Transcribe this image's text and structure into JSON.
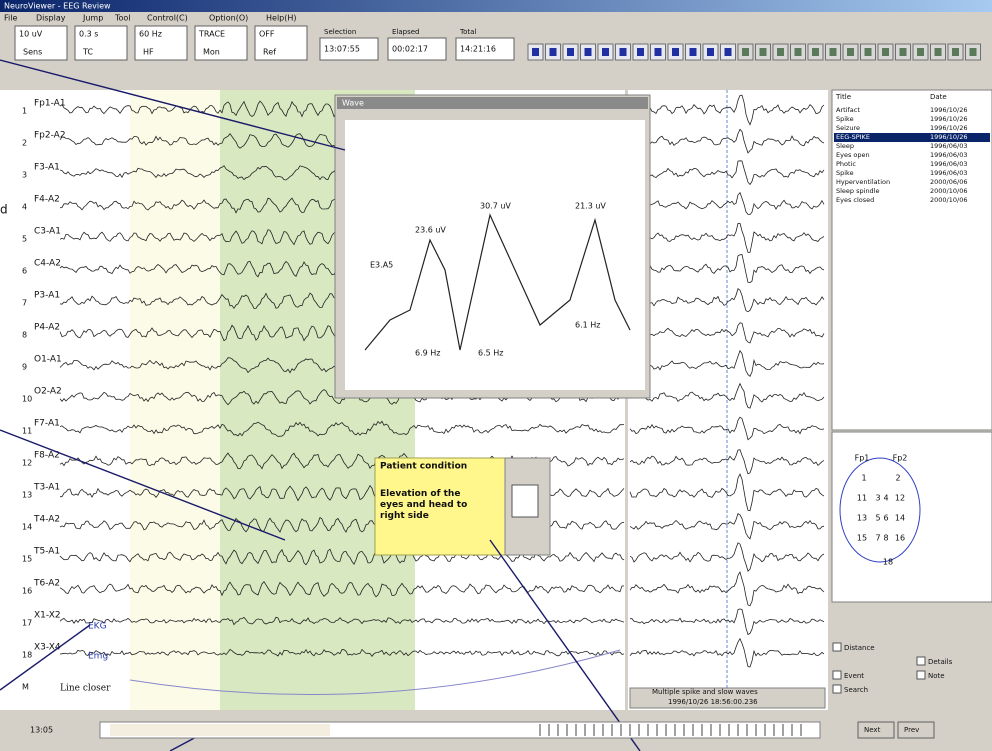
{
  "window": {
    "title": "NeuroViewer - EEG Review",
    "menu": [
      "File",
      "Display",
      "Jump",
      "Tool",
      "Control(C)",
      "Option(O)",
      "Help(H)"
    ]
  },
  "toolbar": {
    "fields": [
      {
        "value": "10 uV",
        "label": "Sens"
      },
      {
        "value": "0.3 s",
        "label": "TC"
      },
      {
        "value": "60 Hz",
        "label": "HF"
      },
      {
        "value": "TRACE",
        "label": "Mon"
      },
      {
        "value": "OFF",
        "label": "Ref"
      }
    ],
    "times": [
      {
        "label": "Selection",
        "value": "13:07:55"
      },
      {
        "label": "Elapsed",
        "value": "00:02:17"
      },
      {
        "label": "Total",
        "value": "14:21:16"
      }
    ]
  },
  "channels": {
    "numbers": [
      "1",
      "2",
      "3",
      "4",
      "5",
      "6",
      "7",
      "8",
      "9",
      "10",
      "11",
      "12",
      "13",
      "14",
      "15",
      "16",
      "17",
      "18",
      "M"
    ],
    "labels": [
      "Fp1-A1",
      "Fp2-A2",
      "F3-A1",
      "F4-A2",
      "C3-A1",
      "C4-A2",
      "P3-A1",
      "P4-A2",
      "O1-A1",
      "O2-A2",
      "F7-A1",
      "F8-A2",
      "T3-A1",
      "T4-A2",
      "T5-A1",
      "T6-A2",
      "X1-X2",
      "X3-X4"
    ],
    "extra": [
      "EKG",
      "Emg",
      "Line closer"
    ]
  },
  "popup": {
    "title": "Wave",
    "axis_label": "E3.A5",
    "peaks": [
      "23.6 uV",
      "30.7 uV",
      "21.3 uV"
    ],
    "freqs": [
      "6.9 Hz",
      "6.5 Hz",
      "6.1 Hz"
    ]
  },
  "note": {
    "heading": "Patient condition",
    "body": "Elevation of the eyes and head to right side"
  },
  "event_list": {
    "headers": [
      "Title",
      "Date"
    ],
    "items": [
      {
        "name": "Artifact",
        "date": "1996/10/26"
      },
      {
        "name": "Spike",
        "date": "1996/10/26"
      },
      {
        "name": "Seizure",
        "date": "1996/10/26"
      },
      {
        "name": "EEG-SPIKE",
        "date": "1996/10/26"
      },
      {
        "name": "Sleep",
        "date": "1996/06/03"
      },
      {
        "name": "Eyes open",
        "date": "1996/06/03"
      },
      {
        "name": "Photic",
        "date": "1996/06/03"
      },
      {
        "name": "Spike",
        "date": "1996/06/03"
      },
      {
        "name": "Hyperventilation",
        "date": "2000/06/06"
      },
      {
        "name": "Sleep spindle",
        "date": "2000/10/06"
      },
      {
        "name": "Eyes closed",
        "date": "2000/10/06"
      }
    ]
  },
  "head_map": {
    "labels": [
      "Fp1",
      "Fp2",
      "1",
      "2",
      "11",
      "3",
      "4",
      "12",
      "13",
      "5",
      "6",
      "14",
      "15",
      "7",
      "8",
      "16",
      "18"
    ]
  },
  "right_panel": {
    "options": [
      "Distance",
      "Details",
      "Event",
      "Note",
      "Search"
    ]
  },
  "status": {
    "event": "Multiple spike and slow waves",
    "time": "1996/10/26 18:56:00.236",
    "left": "13:05",
    "buttons": [
      "Next",
      "Prev"
    ]
  },
  "margin_text": "d"
}
